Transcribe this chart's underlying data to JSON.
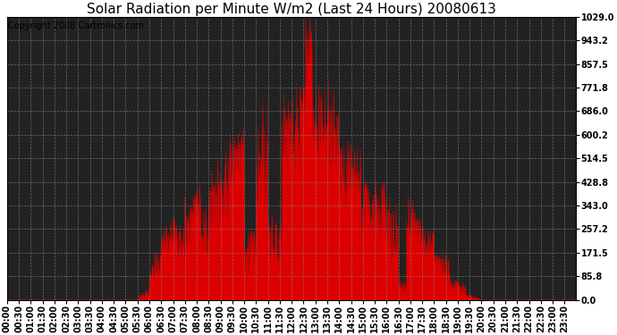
{
  "title": "Solar Radiation per Minute W/m2 (Last 24 Hours) 20080613",
  "copyright_text": "Copyright 2008 Cartronics.com",
  "ymin": 0.0,
  "ymax": 1029.0,
  "yticks": [
    0.0,
    85.8,
    171.5,
    257.2,
    343.0,
    428.8,
    514.5,
    600.2,
    686.0,
    771.8,
    857.5,
    943.2,
    1029.0
  ],
  "fill_color": "#dd0000",
  "line_color": "#dd0000",
  "background_color": "#ffffff",
  "plot_bg_color": "#222222",
  "grid_color": "#888888",
  "dashed_line_color": "#ff4444",
  "title_fontsize": 11,
  "copyright_fontsize": 7,
  "tick_fontsize": 7,
  "figsize": [
    6.9,
    3.75
  ],
  "dpi": 100
}
